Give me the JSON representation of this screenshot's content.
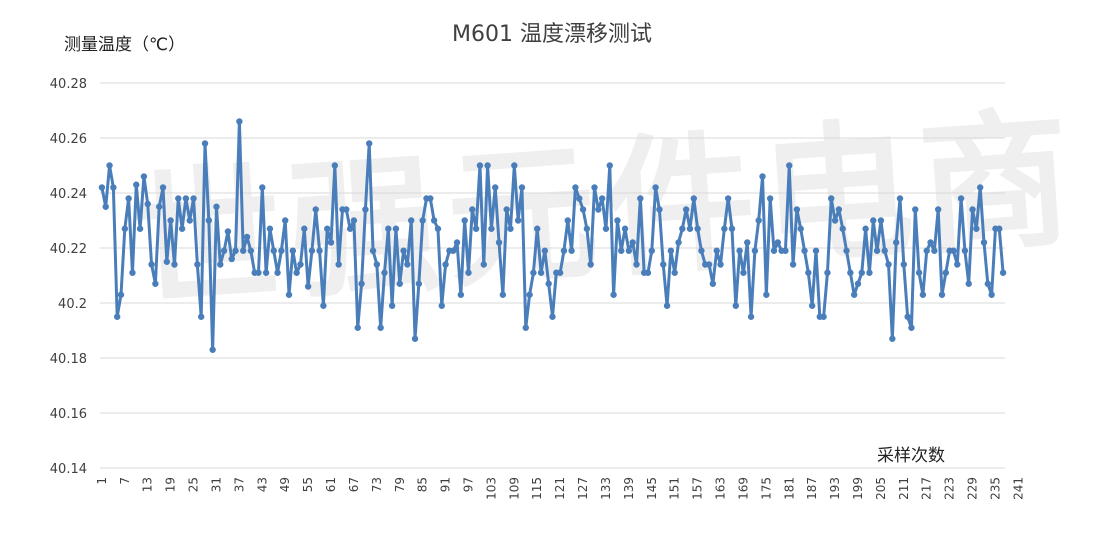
{
  "chart_data": {
    "type": "line",
    "title": "M601  温度漂移测试",
    "ylabel": "测量温度（℃）",
    "xlabel": "采样次数",
    "ylim": [
      40.14,
      40.28
    ],
    "yticks": [
      "40.28",
      "40.26",
      "40.24",
      "40.22",
      "40.2",
      "40.18",
      "40.16",
      "40.14"
    ],
    "ytick_values": [
      40.28,
      40.26,
      40.24,
      40.22,
      40.2,
      40.18,
      40.16,
      40.14
    ],
    "xticks": [
      "1",
      "7",
      "13",
      "19",
      "25",
      "31",
      "37",
      "43",
      "49",
      "55",
      "61",
      "67",
      "73",
      "79",
      "85",
      "91",
      "97",
      "103",
      "109",
      "115",
      "121",
      "127",
      "133",
      "139",
      "145",
      "151",
      "157",
      "163",
      "169",
      "175",
      "181",
      "187",
      "193",
      "199",
      "205",
      "211",
      "217",
      "223",
      "229",
      "235",
      "241"
    ],
    "grid": true,
    "legend": "none",
    "line_color": "#4a7ebb",
    "series": [
      {
        "values": [
          40.242,
          40.235,
          40.25,
          40.242,
          40.195,
          40.203,
          40.227,
          40.238,
          40.211,
          40.243,
          40.227,
          40.246,
          40.236,
          40.214,
          40.207,
          40.235,
          40.242,
          40.215,
          40.23,
          40.214,
          40.238,
          40.227,
          40.238,
          40.23,
          40.238,
          40.214,
          40.195,
          40.258,
          40.23,
          40.183,
          40.235,
          40.214,
          40.219,
          40.226,
          40.216,
          40.219,
          40.266,
          40.219,
          40.224,
          40.219,
          40.211,
          40.211,
          40.242,
          40.211,
          40.227,
          40.219,
          40.211,
          40.219,
          40.23,
          40.203,
          40.219,
          40.211,
          40.214,
          40.227,
          40.206,
          40.219,
          40.234,
          40.219,
          40.199,
          40.227,
          40.222,
          40.25,
          40.214,
          40.234,
          40.234,
          40.227,
          40.23,
          40.191,
          40.207,
          40.234,
          40.258,
          40.219,
          40.214,
          40.191,
          40.211,
          40.227,
          40.199,
          40.227,
          40.207,
          40.219,
          40.214,
          40.23,
          40.187,
          40.207,
          40.23,
          40.238,
          40.238,
          40.23,
          40.227,
          40.199,
          40.214,
          40.219,
          40.219,
          40.222,
          40.203,
          40.23,
          40.211,
          40.234,
          40.227,
          40.25,
          40.214,
          40.25,
          40.227,
          40.242,
          40.222,
          40.203,
          40.234,
          40.227,
          40.25,
          40.23,
          40.242,
          40.191,
          40.203,
          40.211,
          40.227,
          40.211,
          40.219,
          40.207,
          40.195,
          40.211,
          40.211,
          40.219,
          40.23,
          40.219,
          40.242,
          40.238,
          40.234,
          40.227,
          40.214,
          40.242,
          40.234,
          40.238,
          40.227,
          40.25,
          40.203,
          40.23,
          40.219,
          40.227,
          40.219,
          40.222,
          40.214,
          40.238,
          40.211,
          40.211,
          40.219,
          40.242,
          40.234,
          40.214,
          40.199,
          40.219,
          40.211,
          40.222,
          40.227,
          40.234,
          40.227,
          40.238,
          40.227,
          40.219,
          40.214,
          40.214,
          40.207,
          40.219,
          40.214,
          40.227,
          40.238,
          40.227,
          40.199,
          40.219,
          40.211,
          40.222,
          40.195,
          40.219,
          40.23,
          40.246,
          40.203,
          40.238,
          40.219,
          40.222,
          40.219,
          40.219,
          40.25,
          40.214,
          40.234,
          40.227,
          40.219,
          40.211,
          40.199,
          40.219,
          40.195,
          40.195,
          40.211,
          40.238,
          40.23,
          40.234,
          40.227,
          40.219,
          40.211,
          40.203,
          40.207,
          40.211,
          40.227,
          40.211,
          40.23,
          40.219,
          40.23,
          40.219,
          40.214,
          40.187,
          40.222,
          40.238,
          40.214,
          40.195,
          40.191,
          40.234,
          40.211,
          40.203,
          40.219,
          40.222,
          40.219,
          40.234,
          40.203,
          40.211,
          40.219,
          40.219,
          40.214,
          40.238,
          40.219,
          40.207,
          40.234,
          40.227,
          40.242,
          40.222,
          40.207,
          40.203,
          40.227,
          40.227,
          40.211
        ]
      }
    ]
  }
}
